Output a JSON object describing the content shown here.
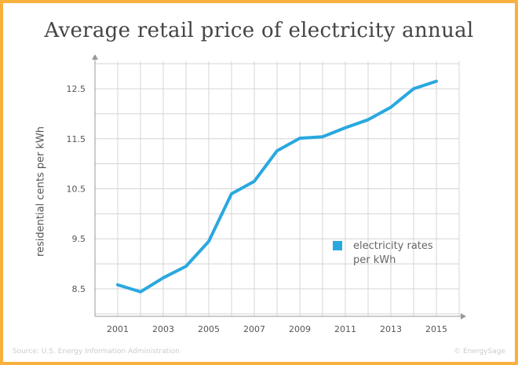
{
  "chart_data": {
    "type": "line",
    "title": "Average retail price of electricity annual",
    "ylabel": "residential cents per kWh",
    "xlabel": "",
    "x": [
      2001,
      2002,
      2003,
      2004,
      2005,
      2006,
      2007,
      2008,
      2009,
      2010,
      2011,
      2012,
      2013,
      2014,
      2015
    ],
    "x_tick_labels": [
      "2001",
      "2003",
      "2005",
      "2007",
      "2009",
      "2011",
      "2013",
      "2015"
    ],
    "y_tick_labels": [
      "8.5",
      "9.5",
      "10.5",
      "11.5",
      "12.5"
    ],
    "y_ticks": [
      8.5,
      9.5,
      10.5,
      11.5,
      12.5
    ],
    "xlim": [
      2000,
      2016
    ],
    "ylim": [
      7.95,
      13.05
    ],
    "grid": true,
    "legend_position": "right",
    "series": [
      {
        "name": "electricity rates per kWh",
        "color": "#29a8e0",
        "values": [
          8.58,
          8.44,
          8.72,
          8.95,
          9.45,
          10.4,
          10.65,
          11.26,
          11.51,
          11.54,
          11.72,
          11.88,
          12.13,
          12.5,
          12.65
        ]
      }
    ]
  },
  "legend": {
    "label": "electricity rates per kWh"
  },
  "footer": {
    "source": "Source: U.S. Energy Information Administration",
    "brand": "© EnergySage"
  }
}
